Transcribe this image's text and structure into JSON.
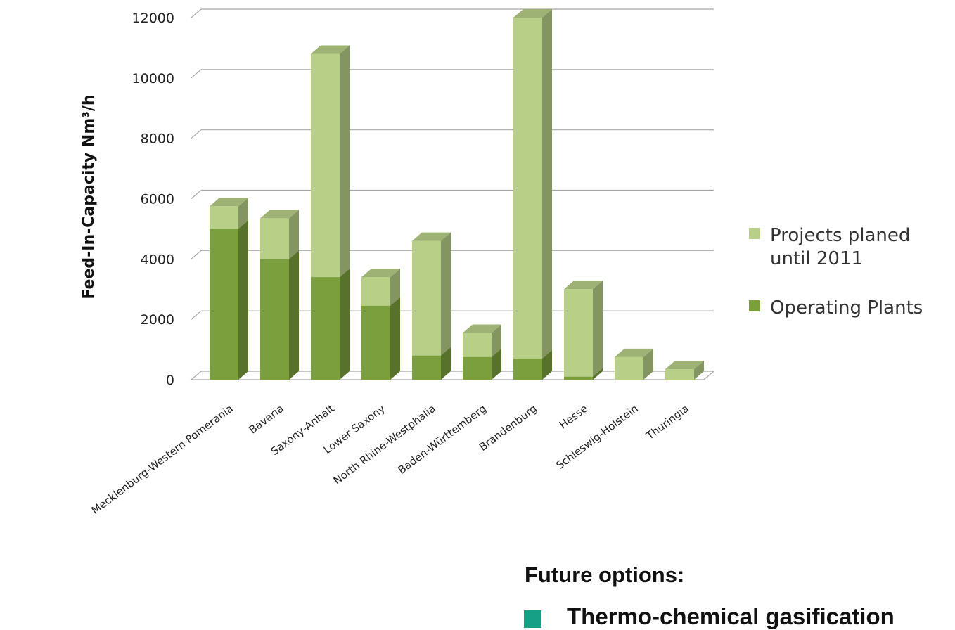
{
  "chart_data": {
    "type": "bar",
    "stacked": true,
    "three_d": true,
    "ylabel": "Feed-In-Capacity Nm³/h",
    "xlabel": "",
    "ylim": [
      0,
      12000
    ],
    "yticks": [
      "0",
      "2000",
      "4000",
      "6000",
      "8000",
      "10000",
      "12000"
    ],
    "grid": true,
    "legend_position": "right",
    "categories": [
      "Mecklenburg-Western Pomerania",
      "Bavaria",
      "Saxony-Anhalt",
      "Lower Saxony",
      "North Rhine-Westphalia",
      "Baden-Württemberg",
      "Brandenburg",
      "Hesse",
      "Schleswig-Holstein",
      "Thuringia"
    ],
    "series": [
      {
        "name": "Operating Plants",
        "color": "#7a9f3c",
        "values": [
          5000,
          4000,
          3400,
          2450,
          800,
          750,
          700,
          100,
          0,
          0
        ]
      },
      {
        "name": "Projects planed until 2011",
        "color": "#b7cf87",
        "values": [
          750,
          1350,
          7400,
          950,
          3800,
          800,
          11300,
          2900,
          750,
          350
        ]
      }
    ],
    "legend_labels": [
      "Projects planed",
      "until 2011",
      "Operating Plants"
    ]
  },
  "text": {
    "future_title": "Future options:",
    "bullet_text": "Thermo-chemical gasification"
  }
}
